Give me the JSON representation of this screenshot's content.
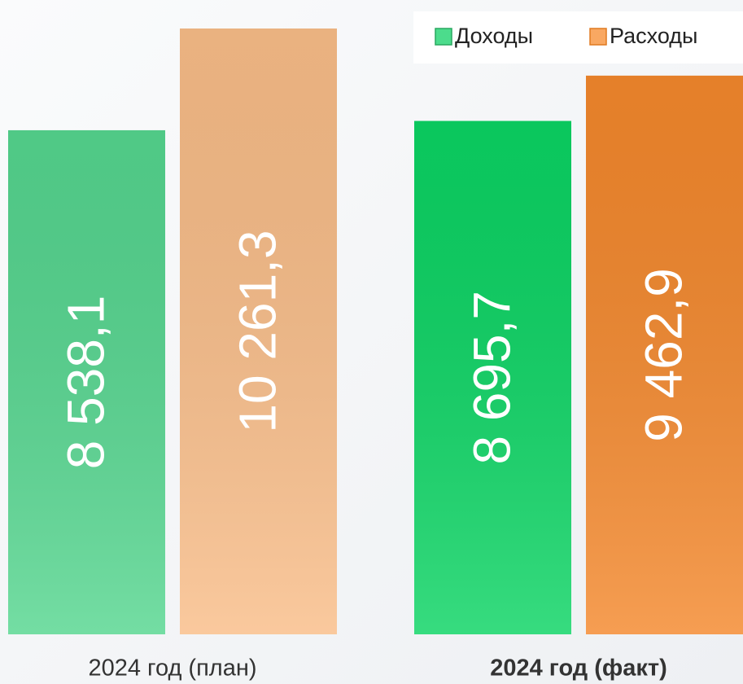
{
  "chart_data": {
    "type": "bar",
    "categories": [
      "2024 год (план)",
      "2024 год (факт)"
    ],
    "series": [
      {
        "name": "Доходы",
        "color": "#4cdc8c",
        "colors": [
          "#55d68f",
          "#0bd463"
        ],
        "values": [
          8538.1,
          8695.7
        ],
        "value_labels": [
          "8 538,1",
          "8 695,7"
        ]
      },
      {
        "name": "Расходы",
        "color": "#f9a862",
        "colors": [
          "#f9bd88",
          "#f4882c"
        ],
        "values": [
          10261.3,
          9462.9
        ],
        "value_labels": [
          "10 261,3",
          "9 462,9"
        ]
      }
    ],
    "legend": "top-right"
  }
}
